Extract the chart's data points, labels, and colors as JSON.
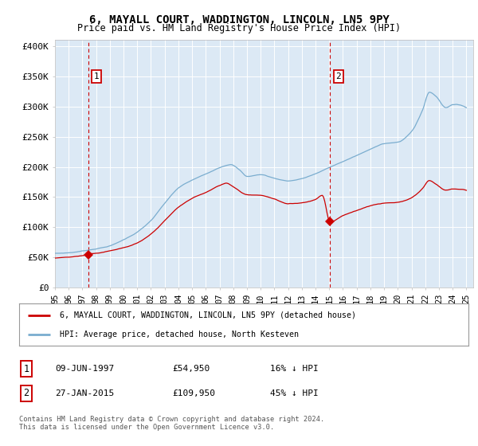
{
  "title_line1": "6, MAYALL COURT, WADDINGTON, LINCOLN, LN5 9PY",
  "title_line2": "Price paid vs. HM Land Registry's House Price Index (HPI)",
  "bg_color": "#dce9f5",
  "plot_bg_color": "#dce9f5",
  "legend_label1": "6, MAYALL COURT, WADDINGTON, LINCOLN, LN5 9PY (detached house)",
  "legend_label2": "HPI: Average price, detached house, North Kesteven",
  "note1_label": "1",
  "note1_date": "09-JUN-1997",
  "note1_price": "£54,950",
  "note1_hpi": "16% ↓ HPI",
  "note2_label": "2",
  "note2_date": "27-JAN-2015",
  "note2_price": "£109,950",
  "note2_hpi": "45% ↓ HPI",
  "copyright": "Contains HM Land Registry data © Crown copyright and database right 2024.\nThis data is licensed under the Open Government Licence v3.0.",
  "price_color": "#cc0000",
  "hpi_color": "#7aadcf",
  "marker_color": "#cc0000",
  "vline_color": "#cc0000",
  "sale1_year": 1997.44,
  "sale1_price": 54950,
  "sale2_year": 2015.07,
  "sale2_price": 109950,
  "ylim": [
    0,
    410000
  ],
  "xlim_start": 1995.0,
  "xlim_end": 2025.5,
  "xtick_years": [
    1995,
    1996,
    1997,
    1998,
    1999,
    2000,
    2001,
    2002,
    2003,
    2004,
    2005,
    2006,
    2007,
    2008,
    2009,
    2010,
    2011,
    2012,
    2013,
    2014,
    2015,
    2016,
    2017,
    2018,
    2019,
    2020,
    2021,
    2022,
    2023,
    2024,
    2025
  ],
  "yticks": [
    0,
    50000,
    100000,
    150000,
    200000,
    250000,
    300000,
    350000,
    400000
  ],
  "ytick_labels": [
    "£0",
    "£50K",
    "£100K",
    "£150K",
    "£200K",
    "£250K",
    "£300K",
    "£350K",
    "£400K"
  ]
}
